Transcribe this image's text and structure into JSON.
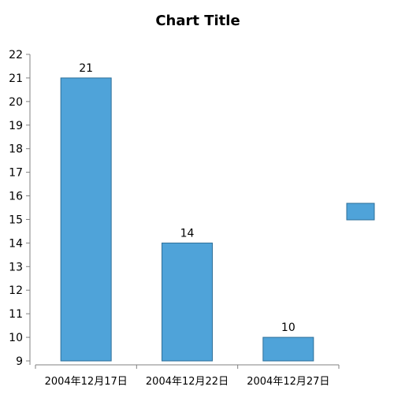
{
  "chart_data": {
    "type": "bar",
    "title": "Chart Title",
    "categories": [
      "2004年12月17日",
      "2004年12月22日",
      "2004年12月27日"
    ],
    "series": [
      {
        "values": [
          21,
          14,
          10
        ]
      }
    ],
    "data_labels": [
      "21",
      "14",
      "10"
    ],
    "ylim": [
      9,
      22
    ],
    "yticks": [
      9,
      10,
      11,
      12,
      13,
      14,
      15,
      16,
      17,
      18,
      19,
      20,
      21,
      22
    ],
    "grid": false,
    "legend": {
      "placement": "right",
      "show_names": false
    },
    "colors": {
      "bar_fill": "#4FA3D9",
      "bar_stroke": "#2E6F99",
      "axis": "#808080",
      "text": "#000000"
    }
  }
}
